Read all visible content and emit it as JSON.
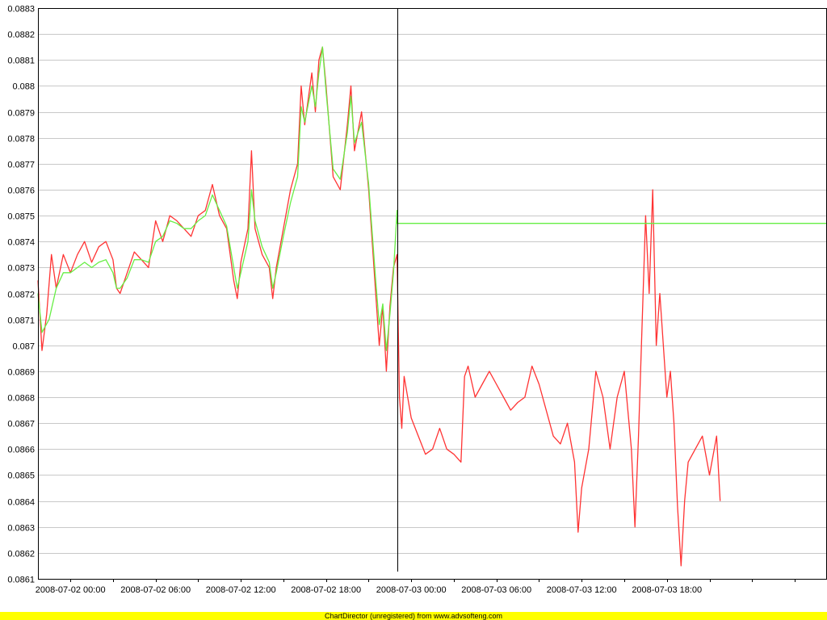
{
  "footer": {
    "text": "ChartDirector (unregistered) from www.advsofteng.com",
    "background": "#ffff00"
  },
  "chart_data": {
    "type": "line",
    "title": "",
    "xlabel": "",
    "ylabel": "",
    "grid": true,
    "legend": "none",
    "ylim": [
      0.0861,
      0.0883
    ],
    "xlim": [
      "2008-07-01 21:43",
      "2008-07-04 05:13"
    ],
    "yticks": [
      "0.0861",
      "0.0862",
      "0.0863",
      "0.0864",
      "0.0865",
      "0.0866",
      "0.0867",
      "0.0868",
      "0.0869",
      "0.087",
      "0.0871",
      "0.0872",
      "0.0873",
      "0.0874",
      "0.0875",
      "0.0876",
      "0.0877",
      "0.0878",
      "0.0879",
      "0.088",
      "0.0881",
      "0.0882",
      "0.0883"
    ],
    "xticks": [
      {
        "label": "2008-07-02 00:00",
        "t": "2008-07-02 00:00"
      },
      {
        "label": "2008-07-02 06:00",
        "t": "2008-07-02 06:00"
      },
      {
        "label": "2008-07-02 12:00",
        "t": "2008-07-02 12:00"
      },
      {
        "label": "2008-07-02 18:00",
        "t": "2008-07-02 18:00"
      },
      {
        "label": "2008-07-03 00:00",
        "t": "2008-07-03 00:00"
      },
      {
        "label": "2008-07-03 06:00",
        "t": "2008-07-03 06:00"
      },
      {
        "label": "2008-07-03 12:00",
        "t": "2008-07-03 12:00"
      },
      {
        "label": "2008-07-03 18:00",
        "t": "2008-07-03 18:00"
      }
    ],
    "vertical_marker": "2008-07-02 23:00",
    "series": [
      {
        "color": "#ff3333",
        "points": [
          [
            "2008-07-01 21:43",
            0.08725
          ],
          [
            "2008-07-01 22:00",
            0.08698
          ],
          [
            "2008-07-01 22:20",
            0.08712
          ],
          [
            "2008-07-01 22:40",
            0.08735
          ],
          [
            "2008-07-01 23:00",
            0.08722
          ],
          [
            "2008-07-01 23:30",
            0.08735
          ],
          [
            "2008-07-02 00:00",
            0.08728
          ],
          [
            "2008-07-02 00:30",
            0.08735
          ],
          [
            "2008-07-02 01:00",
            0.0874
          ],
          [
            "2008-07-02 01:30",
            0.08732
          ],
          [
            "2008-07-02 02:00",
            0.08738
          ],
          [
            "2008-07-02 02:30",
            0.0874
          ],
          [
            "2008-07-02 03:00",
            0.08733
          ],
          [
            "2008-07-02 03:15",
            0.08722
          ],
          [
            "2008-07-02 03:30",
            0.0872
          ],
          [
            "2008-07-02 04:00",
            0.08728
          ],
          [
            "2008-07-02 04:30",
            0.08736
          ],
          [
            "2008-07-02 05:00",
            0.08733
          ],
          [
            "2008-07-02 05:30",
            0.0873
          ],
          [
            "2008-07-02 06:00",
            0.08748
          ],
          [
            "2008-07-02 06:30",
            0.0874
          ],
          [
            "2008-07-02 07:00",
            0.0875
          ],
          [
            "2008-07-02 07:30",
            0.08748
          ],
          [
            "2008-07-02 08:00",
            0.08745
          ],
          [
            "2008-07-02 08:30",
            0.08742
          ],
          [
            "2008-07-02 09:00",
            0.0875
          ],
          [
            "2008-07-02 09:30",
            0.08752
          ],
          [
            "2008-07-02 10:00",
            0.08762
          ],
          [
            "2008-07-02 10:30",
            0.0875
          ],
          [
            "2008-07-02 11:00",
            0.08745
          ],
          [
            "2008-07-02 11:30",
            0.08725
          ],
          [
            "2008-07-02 11:45",
            0.08718
          ],
          [
            "2008-07-02 12:00",
            0.08732
          ],
          [
            "2008-07-02 12:30",
            0.08745
          ],
          [
            "2008-07-02 12:45",
            0.08775
          ],
          [
            "2008-07-02 13:00",
            0.08745
          ],
          [
            "2008-07-02 13:30",
            0.08735
          ],
          [
            "2008-07-02 14:00",
            0.0873
          ],
          [
            "2008-07-02 14:15",
            0.08718
          ],
          [
            "2008-07-02 14:30",
            0.0873
          ],
          [
            "2008-07-02 15:00",
            0.08745
          ],
          [
            "2008-07-02 15:30",
            0.0876
          ],
          [
            "2008-07-02 16:00",
            0.0877
          ],
          [
            "2008-07-02 16:15",
            0.088
          ],
          [
            "2008-07-02 16:30",
            0.08785
          ],
          [
            "2008-07-02 17:00",
            0.08805
          ],
          [
            "2008-07-02 17:15",
            0.0879
          ],
          [
            "2008-07-02 17:30",
            0.0881
          ],
          [
            "2008-07-02 17:45",
            0.08815
          ],
          [
            "2008-07-02 18:00",
            0.088
          ],
          [
            "2008-07-02 18:30",
            0.08765
          ],
          [
            "2008-07-02 19:00",
            0.0876
          ],
          [
            "2008-07-02 19:30",
            0.08785
          ],
          [
            "2008-07-02 19:45",
            0.088
          ],
          [
            "2008-07-02 20:00",
            0.08775
          ],
          [
            "2008-07-02 20:30",
            0.0879
          ],
          [
            "2008-07-02 21:00",
            0.0876
          ],
          [
            "2008-07-02 21:30",
            0.0872
          ],
          [
            "2008-07-02 21:45",
            0.087
          ],
          [
            "2008-07-02 22:00",
            0.08715
          ],
          [
            "2008-07-02 22:15",
            0.0869
          ],
          [
            "2008-07-02 22:30",
            0.08715
          ],
          [
            "2008-07-02 22:45",
            0.0873
          ],
          [
            "2008-07-02 23:00",
            0.08735
          ],
          [
            "2008-07-02 23:10",
            0.0868
          ],
          [
            "2008-07-02 23:20",
            0.08668
          ],
          [
            "2008-07-02 23:30",
            0.08688
          ],
          [
            "2008-07-03 00:00",
            0.08672
          ],
          [
            "2008-07-03 00:30",
            0.08665
          ],
          [
            "2008-07-03 01:00",
            0.08658
          ],
          [
            "2008-07-03 01:30",
            0.0866
          ],
          [
            "2008-07-03 02:00",
            0.08668
          ],
          [
            "2008-07-03 02:30",
            0.0866
          ],
          [
            "2008-07-03 03:00",
            0.08658
          ],
          [
            "2008-07-03 03:30",
            0.08655
          ],
          [
            "2008-07-03 03:45",
            0.08688
          ],
          [
            "2008-07-03 04:00",
            0.08692
          ],
          [
            "2008-07-03 04:30",
            0.0868
          ],
          [
            "2008-07-03 05:00",
            0.08685
          ],
          [
            "2008-07-03 05:30",
            0.0869
          ],
          [
            "2008-07-03 06:00",
            0.08685
          ],
          [
            "2008-07-03 06:30",
            0.0868
          ],
          [
            "2008-07-03 07:00",
            0.08675
          ],
          [
            "2008-07-03 07:30",
            0.08678
          ],
          [
            "2008-07-03 08:00",
            0.0868
          ],
          [
            "2008-07-03 08:30",
            0.08692
          ],
          [
            "2008-07-03 09:00",
            0.08685
          ],
          [
            "2008-07-03 09:30",
            0.08675
          ],
          [
            "2008-07-03 10:00",
            0.08665
          ],
          [
            "2008-07-03 10:30",
            0.08662
          ],
          [
            "2008-07-03 11:00",
            0.0867
          ],
          [
            "2008-07-03 11:30",
            0.08655
          ],
          [
            "2008-07-03 11:45",
            0.08628
          ],
          [
            "2008-07-03 12:00",
            0.08645
          ],
          [
            "2008-07-03 12:30",
            0.0866
          ],
          [
            "2008-07-03 13:00",
            0.0869
          ],
          [
            "2008-07-03 13:30",
            0.0868
          ],
          [
            "2008-07-03 14:00",
            0.0866
          ],
          [
            "2008-07-03 14:30",
            0.0868
          ],
          [
            "2008-07-03 15:00",
            0.0869
          ],
          [
            "2008-07-03 15:30",
            0.0866
          ],
          [
            "2008-07-03 15:45",
            0.0863
          ],
          [
            "2008-07-03 16:00",
            0.08665
          ],
          [
            "2008-07-03 16:30",
            0.0875
          ],
          [
            "2008-07-03 16:45",
            0.0872
          ],
          [
            "2008-07-03 17:00",
            0.0876
          ],
          [
            "2008-07-03 17:15",
            0.087
          ],
          [
            "2008-07-03 17:30",
            0.0872
          ],
          [
            "2008-07-03 18:00",
            0.0868
          ],
          [
            "2008-07-03 18:15",
            0.0869
          ],
          [
            "2008-07-03 18:30",
            0.0867
          ],
          [
            "2008-07-03 18:45",
            0.08638
          ],
          [
            "2008-07-03 19:00",
            0.08615
          ],
          [
            "2008-07-03 19:15",
            0.0864
          ],
          [
            "2008-07-03 19:30",
            0.08655
          ],
          [
            "2008-07-03 20:00",
            0.0866
          ],
          [
            "2008-07-03 20:30",
            0.08665
          ],
          [
            "2008-07-03 21:00",
            0.0865
          ],
          [
            "2008-07-03 21:30",
            0.08665
          ],
          [
            "2008-07-03 21:45",
            0.0864
          ]
        ]
      },
      {
        "color": "#66ee44",
        "points": [
          [
            "2008-07-01 21:43",
            0.0872
          ],
          [
            "2008-07-01 22:00",
            0.08705
          ],
          [
            "2008-07-01 22:30",
            0.0871
          ],
          [
            "2008-07-01 23:00",
            0.08722
          ],
          [
            "2008-07-01 23:30",
            0.08728
          ],
          [
            "2008-07-02 00:00",
            0.08728
          ],
          [
            "2008-07-02 00:30",
            0.0873
          ],
          [
            "2008-07-02 01:00",
            0.08732
          ],
          [
            "2008-07-02 01:30",
            0.0873
          ],
          [
            "2008-07-02 02:00",
            0.08732
          ],
          [
            "2008-07-02 02:30",
            0.08733
          ],
          [
            "2008-07-02 03:00",
            0.08728
          ],
          [
            "2008-07-02 03:15",
            0.08722
          ],
          [
            "2008-07-02 03:30",
            0.08722
          ],
          [
            "2008-07-02 04:00",
            0.08726
          ],
          [
            "2008-07-02 04:30",
            0.08733
          ],
          [
            "2008-07-02 05:00",
            0.08733
          ],
          [
            "2008-07-02 05:30",
            0.08732
          ],
          [
            "2008-07-02 06:00",
            0.0874
          ],
          [
            "2008-07-02 06:30",
            0.08742
          ],
          [
            "2008-07-02 07:00",
            0.08748
          ],
          [
            "2008-07-02 07:30",
            0.08747
          ],
          [
            "2008-07-02 08:00",
            0.08745
          ],
          [
            "2008-07-02 08:30",
            0.08745
          ],
          [
            "2008-07-02 09:00",
            0.08748
          ],
          [
            "2008-07-02 09:30",
            0.0875
          ],
          [
            "2008-07-02 10:00",
            0.08758
          ],
          [
            "2008-07-02 10:30",
            0.08752
          ],
          [
            "2008-07-02 11:00",
            0.08746
          ],
          [
            "2008-07-02 11:30",
            0.0873
          ],
          [
            "2008-07-02 11:45",
            0.08722
          ],
          [
            "2008-07-02 12:00",
            0.08728
          ],
          [
            "2008-07-02 12:30",
            0.0874
          ],
          [
            "2008-07-02 12:45",
            0.0876
          ],
          [
            "2008-07-02 13:00",
            0.08748
          ],
          [
            "2008-07-02 13:30",
            0.08738
          ],
          [
            "2008-07-02 14:00",
            0.08732
          ],
          [
            "2008-07-02 14:15",
            0.08722
          ],
          [
            "2008-07-02 14:30",
            0.08728
          ],
          [
            "2008-07-02 15:00",
            0.08742
          ],
          [
            "2008-07-02 15:30",
            0.08755
          ],
          [
            "2008-07-02 16:00",
            0.08765
          ],
          [
            "2008-07-02 16:15",
            0.08792
          ],
          [
            "2008-07-02 16:30",
            0.08786
          ],
          [
            "2008-07-02 17:00",
            0.088
          ],
          [
            "2008-07-02 17:15",
            0.08792
          ],
          [
            "2008-07-02 17:30",
            0.08805
          ],
          [
            "2008-07-02 17:45",
            0.08815
          ],
          [
            "2008-07-02 18:00",
            0.08798
          ],
          [
            "2008-07-02 18:30",
            0.08768
          ],
          [
            "2008-07-02 19:00",
            0.08764
          ],
          [
            "2008-07-02 19:30",
            0.08782
          ],
          [
            "2008-07-02 19:45",
            0.08796
          ],
          [
            "2008-07-02 20:00",
            0.08778
          ],
          [
            "2008-07-02 20:30",
            0.08786
          ],
          [
            "2008-07-02 21:00",
            0.08762
          ],
          [
            "2008-07-02 21:30",
            0.08725
          ],
          [
            "2008-07-02 21:45",
            0.08708
          ],
          [
            "2008-07-02 22:00",
            0.08716
          ],
          [
            "2008-07-02 22:15",
            0.08698
          ],
          [
            "2008-07-02 22:30",
            0.08712
          ],
          [
            "2008-07-02 22:45",
            0.08728
          ],
          [
            "2008-07-02 23:00",
            0.08752
          ],
          [
            "2008-07-02 23:01",
            0.08747
          ],
          [
            "2008-07-04 05:13",
            0.08747
          ]
        ]
      }
    ]
  }
}
